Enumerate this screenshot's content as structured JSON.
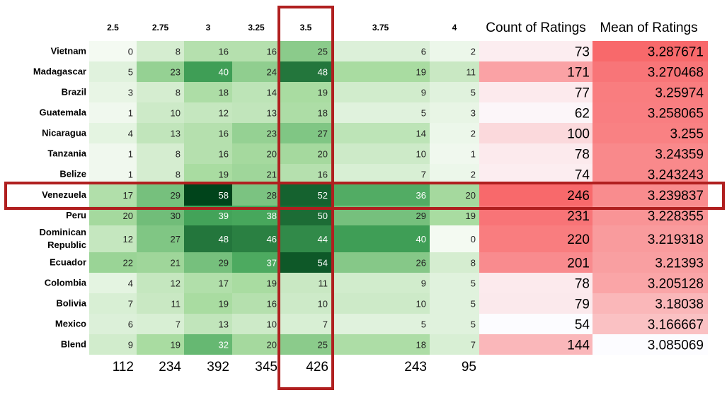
{
  "chart_data": {
    "type": "heatmap",
    "columns": [
      "2.5",
      "2.75",
      "3",
      "3.25",
      "3.5",
      "3.75",
      "4"
    ],
    "count_header": "Count of Ratings",
    "mean_header": "Mean of Ratings",
    "rows": [
      {
        "label": "Vietnam",
        "values": [
          0,
          8,
          16,
          16,
          25,
          6,
          2
        ],
        "count": "73",
        "mean": "3.287671"
      },
      {
        "label": "Madagascar",
        "values": [
          5,
          23,
          40,
          24,
          48,
          19,
          11
        ],
        "count": "171",
        "mean": "3.270468"
      },
      {
        "label": "Brazil",
        "values": [
          3,
          8,
          18,
          14,
          19,
          9,
          5
        ],
        "count": "77",
        "mean": "3.25974"
      },
      {
        "label": "Guatemala",
        "values": [
          1,
          10,
          12,
          13,
          18,
          5,
          3
        ],
        "count": "62",
        "mean": "3.258065"
      },
      {
        "label": "Nicaragua",
        "values": [
          4,
          13,
          16,
          23,
          27,
          14,
          2
        ],
        "count": "100",
        "mean": "3.255"
      },
      {
        "label": "Tanzania",
        "values": [
          1,
          8,
          16,
          20,
          20,
          10,
          1
        ],
        "count": "78",
        "mean": "3.24359"
      },
      {
        "label": "Belize",
        "values": [
          1,
          8,
          19,
          21,
          16,
          7,
          2
        ],
        "count": "74",
        "mean": "3.243243"
      },
      {
        "label": "Venezuela",
        "values": [
          17,
          29,
          58,
          28,
          52,
          36,
          20
        ],
        "count": "246",
        "mean": "3.239837"
      },
      {
        "label": "Peru",
        "values": [
          20,
          30,
          39,
          38,
          50,
          29,
          19
        ],
        "count": "231",
        "mean": "3.228355"
      },
      {
        "label": "Dominican Republic",
        "values": [
          12,
          27,
          48,
          46,
          44,
          40,
          0
        ],
        "count": "220",
        "mean": "3.219318"
      },
      {
        "label": "Ecuador",
        "values": [
          22,
          21,
          29,
          37,
          54,
          26,
          8
        ],
        "count": "201",
        "mean": "3.21393"
      },
      {
        "label": "Colombia",
        "values": [
          4,
          12,
          17,
          19,
          11,
          9,
          5
        ],
        "count": "78",
        "mean": "3.205128"
      },
      {
        "label": "Bolivia",
        "values": [
          7,
          11,
          19,
          16,
          10,
          10,
          5
        ],
        "count": "79",
        "mean": "3.18038"
      },
      {
        "label": "Mexico",
        "values": [
          6,
          7,
          13,
          10,
          7,
          5,
          5
        ],
        "count": "54",
        "mean": "3.166667"
      },
      {
        "label": "Blend",
        "values": [
          9,
          19,
          32,
          20,
          25,
          18,
          7
        ],
        "count": "144",
        "mean": "3.085069"
      }
    ],
    "column_totals": [
      "112",
      "234",
      "392",
      "345",
      "426",
      "243",
      "95"
    ],
    "highlighted_row": "Venezuela",
    "highlighted_column": "3.5"
  }
}
